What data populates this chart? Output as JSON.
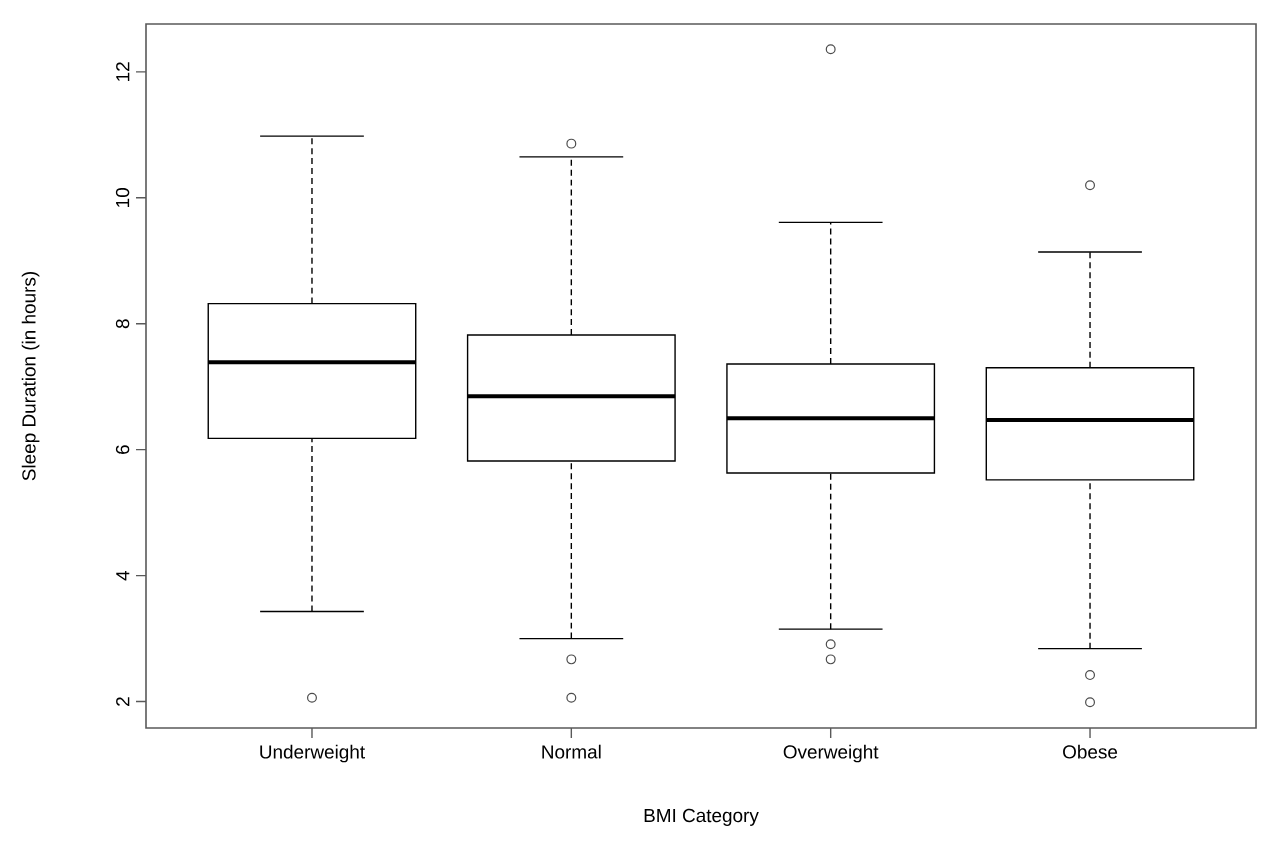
{
  "chart_data": {
    "type": "box",
    "xlabel": "BMI Category",
    "ylabel": "Sleep Duration (in hours)",
    "categories": [
      "Underweight",
      "Normal",
      "Overweight",
      "Obese"
    ],
    "boxes": [
      {
        "low": 3.43,
        "q1": 6.18,
        "median": 7.39,
        "q3": 8.32,
        "high": 10.98,
        "outliers": [
          2.06
        ]
      },
      {
        "low": 3.0,
        "q1": 5.82,
        "median": 6.85,
        "q3": 7.82,
        "high": 10.65,
        "outliers": [
          10.86,
          2.67,
          2.06
        ]
      },
      {
        "low": 3.15,
        "q1": 5.63,
        "median": 6.5,
        "q3": 7.36,
        "high": 9.61,
        "outliers": [
          12.36,
          2.91,
          2.67
        ]
      },
      {
        "low": 2.84,
        "q1": 5.52,
        "median": 6.47,
        "q3": 7.3,
        "high": 9.14,
        "outliers": [
          10.2,
          2.42,
          1.99
        ]
      }
    ],
    "ylim": [
      1.58,
      12.76
    ],
    "yticks": [
      2,
      4,
      6,
      8,
      10,
      12
    ],
    "grid": false
  }
}
